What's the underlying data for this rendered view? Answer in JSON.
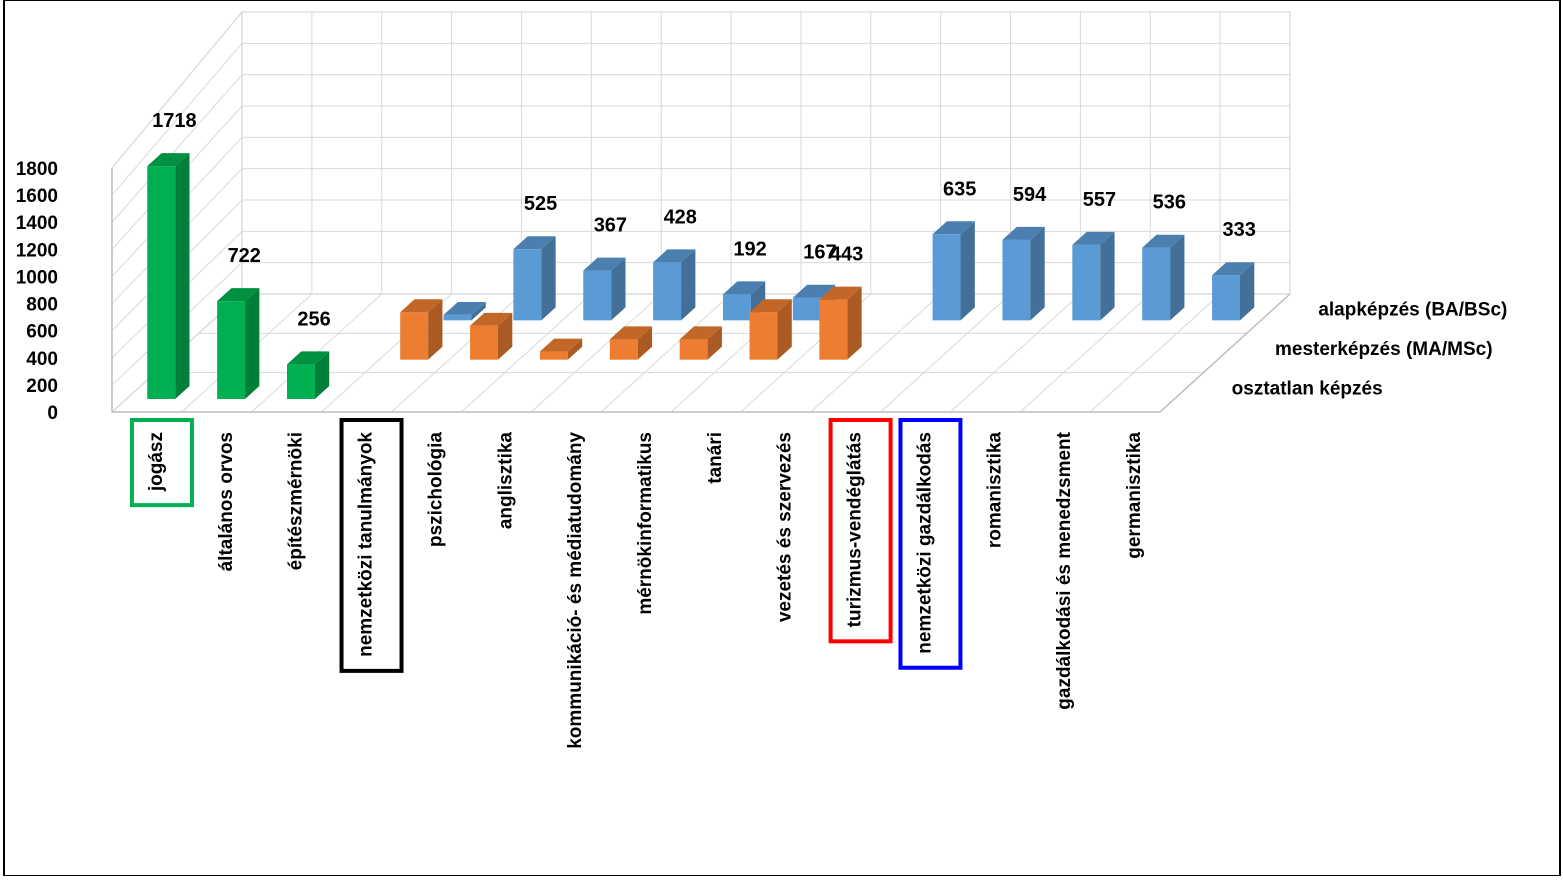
{
  "chart_data": {
    "type": "bar",
    "subtype": "3d-column",
    "title": "",
    "xlabel": "",
    "ylabel": "",
    "ylim": [
      0,
      1800
    ],
    "y_ticks": [
      "0",
      "200",
      "400",
      "600",
      "800",
      "1000",
      "1200",
      "1400",
      "1600",
      "1800"
    ],
    "grid": true,
    "categories": [
      "jogász",
      "általános orvos",
      "építészmérnöki",
      "nemzetközi tanulmányok",
      "pszichológia",
      "anglisztika",
      "kommunikáció- és médiatudomány",
      "mérnökinformatikus",
      "tanári",
      "vezetés és szervezés",
      "turizmus-vendéglátás",
      "nemzetközi gazdálkodás",
      "romanisztika",
      "gazdálkodási és menedzsment",
      "germanisztika"
    ],
    "series": [
      {
        "name": "osztatlan képzés",
        "color": "#00B050",
        "values": [
          1718,
          722,
          256,
          null,
          null,
          null,
          null,
          null,
          null,
          null,
          null,
          null,
          null,
          null,
          null
        ],
        "labels": [
          "1718",
          "722",
          "256",
          "",
          "",
          "",
          "",
          "",
          "",
          "",
          "",
          "",
          "",
          "",
          ""
        ]
      },
      {
        "name": "mesterképzés (MA/MSc)",
        "color": "#ED7D31",
        "values": [
          null,
          null,
          null,
          350,
          250,
          60,
          150,
          150,
          350,
          443,
          null,
          null,
          null,
          null,
          null
        ],
        "labels": [
          "",
          "",
          "",
          "",
          "",
          "",
          "",
          "",
          "",
          "443",
          "",
          "",
          "",
          "",
          ""
        ]
      },
      {
        "name": "alapképzés (BA/BSc)",
        "color": "#5B9BD5",
        "values": [
          null,
          null,
          null,
          40,
          525,
          367,
          428,
          192,
          167,
          null,
          635,
          594,
          557,
          536,
          333
        ],
        "labels": [
          "",
          "",
          "",
          "",
          "525",
          "367",
          "428",
          "192",
          "167",
          "",
          "635",
          "594",
          "557",
          "536",
          "333"
        ]
      }
    ],
    "highlighted_categories": [
      {
        "category": "jogász",
        "color": "#00B050"
      },
      {
        "category": "nemzetközi tanulmányok",
        "color": "#000000"
      },
      {
        "category": "turizmus-vendéglátás",
        "color": "#FF0000"
      },
      {
        "category": "nemzetközi gazdálkodás",
        "color": "#0000FF"
      }
    ]
  }
}
